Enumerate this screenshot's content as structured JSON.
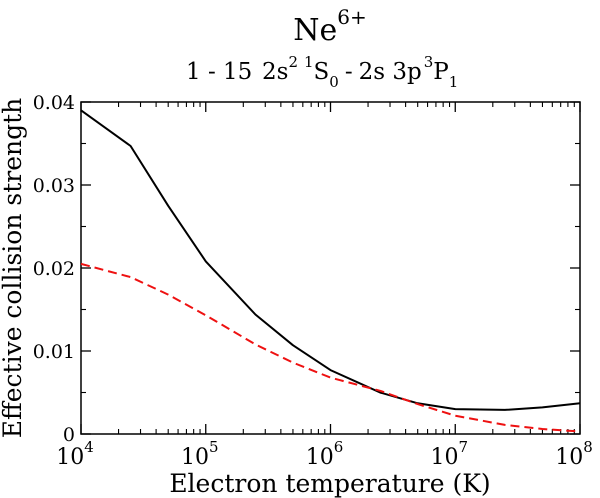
{
  "chart_data": {
    "type": "line",
    "title": {
      "ion": "Ne",
      "charge": "6+"
    },
    "subtitle": {
      "index": "1 - 15",
      "lower_config": "2s",
      "lower_config_sup": "2",
      "lower_mult": "1",
      "lower_term": "S",
      "lower_j": "0",
      "dash": "-",
      "upper_config": "2s 3p",
      "upper_mult": "3",
      "upper_term": "P",
      "upper_j": "1"
    },
    "xlabel": "Electron temperature (K)",
    "ylabel": "Effective collision strength",
    "x_scale": "log",
    "xlim": [
      10000,
      100000000
    ],
    "ylim": [
      0,
      0.04
    ],
    "x_ticks": [
      {
        "base": "10",
        "exp": "4",
        "value": 10000
      },
      {
        "base": "10",
        "exp": "5",
        "value": 100000
      },
      {
        "base": "10",
        "exp": "6",
        "value": 1000000
      },
      {
        "base": "10",
        "exp": "7",
        "value": 10000000
      },
      {
        "base": "10",
        "exp": "8",
        "value": 100000000
      }
    ],
    "y_ticks": [
      {
        "label": "0",
        "value": 0
      },
      {
        "label": "0.01",
        "value": 0.01
      },
      {
        "label": "0.02",
        "value": 0.02
      },
      {
        "label": "0.03",
        "value": 0.03
      },
      {
        "label": "0.04",
        "value": 0.04
      }
    ],
    "grid": false,
    "series": [
      {
        "color": "#000000",
        "style": "solid",
        "x": [
          10000,
          25000,
          50000,
          100000,
          250000,
          500000,
          1000000,
          2500000,
          5000000,
          10000000,
          25000000,
          50000000,
          100000000
        ],
        "y": [
          0.039,
          0.0347,
          0.0275,
          0.0208,
          0.0144,
          0.0107,
          0.0077,
          0.005,
          0.0037,
          0.003,
          0.0029,
          0.0032,
          0.0037
        ]
      },
      {
        "color": "#ee1111",
        "style": "dashed",
        "x": [
          10000,
          25000,
          50000,
          100000,
          250000,
          500000,
          1000000,
          2500000,
          5000000,
          10000000,
          25000000,
          50000000,
          100000000
        ],
        "y": [
          0.0205,
          0.0189,
          0.0168,
          0.0143,
          0.0108,
          0.0086,
          0.0068,
          0.0052,
          0.0036,
          0.0022,
          0.0011,
          0.0006,
          0.0003
        ]
      }
    ]
  }
}
